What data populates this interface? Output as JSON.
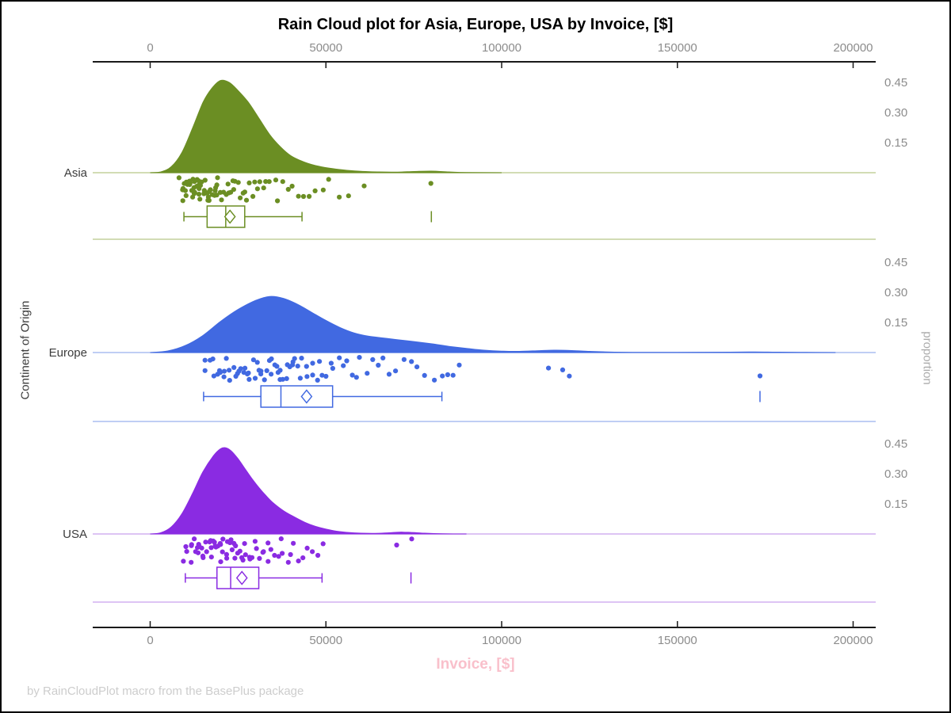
{
  "title": "Rain Cloud plot for Asia, Europe, USA by Invoice, [$]",
  "footer": "by RainCloudPlot macro from the BasePlus package",
  "axes": {
    "x_bottom_label": "Invoice, [$]",
    "x_bottom_label_color": "#f9c0cb",
    "y_left_label": "Continent of Origin",
    "y_right_label": "proportion",
    "tick_label_color": "#8c8c8c",
    "axis_line_color": "#1a1a1a"
  },
  "chart_data": {
    "type": "raincloud",
    "title": "Rain Cloud plot for Asia, Europe, USA by Invoice, [$]",
    "xlabel": "Invoice, [$]",
    "ylabel_left": "Continent of Origin",
    "ylabel_right": "proportion",
    "x_range": [
      0,
      200000
    ],
    "x_ticks": [
      0,
      50000,
      100000,
      150000,
      200000
    ],
    "x_tick_labels": [
      "0",
      "50000",
      "100000",
      "150000",
      "200000"
    ],
    "proportion_ticks": [
      0.45,
      0.3,
      0.15
    ],
    "proportion_tick_labels": [
      "0.45",
      "0.30",
      "0.15"
    ],
    "groups": [
      {
        "name": "Asia",
        "color": "#6B8E23",
        "light_color": "#c3d19c",
        "density": [
          [
            0,
            0
          ],
          [
            3000,
            0.004
          ],
          [
            6000,
            0.03
          ],
          [
            9000,
            0.1
          ],
          [
            12000,
            0.22
          ],
          [
            15000,
            0.35
          ],
          [
            17500,
            0.42
          ],
          [
            20000,
            0.46
          ],
          [
            22500,
            0.45
          ],
          [
            25000,
            0.41
          ],
          [
            28000,
            0.35
          ],
          [
            31000,
            0.27
          ],
          [
            34000,
            0.19
          ],
          [
            37000,
            0.13
          ],
          [
            40000,
            0.085
          ],
          [
            44000,
            0.052
          ],
          [
            48000,
            0.032
          ],
          [
            52000,
            0.02
          ],
          [
            56000,
            0.012
          ],
          [
            60000,
            0.007
          ],
          [
            65000,
            0.004
          ],
          [
            70000,
            0.003
          ],
          [
            75000,
            0.006
          ],
          [
            80000,
            0.008
          ],
          [
            85000,
            0.004
          ],
          [
            90000,
            0.001
          ],
          [
            100000,
            0
          ]
        ],
        "box": {
          "whisker_low": 9600,
          "q1": 16200,
          "median": 21500,
          "q3": 26900,
          "whisker_high": 43200,
          "mean": 22700,
          "outliers": [
            80000
          ]
        },
        "points": [
          8600,
          9100,
          9300,
          9600,
          9800,
          10000,
          10200,
          10400,
          10600,
          10800,
          11000,
          11200,
          11400,
          11600,
          11800,
          12000,
          12100,
          12300,
          12500,
          12700,
          12900,
          13100,
          13300,
          13500,
          13700,
          13900,
          14100,
          14300,
          14500,
          14700,
          14900,
          15100,
          15400,
          15600,
          15900,
          16100,
          16400,
          16700,
          17000,
          17300,
          17600,
          17900,
          18200,
          18500,
          18900,
          19200,
          19600,
          20000,
          20400,
          20800,
          21200,
          21700,
          22100,
          22600,
          23100,
          23700,
          24200,
          24800,
          25400,
          26000,
          26700,
          27400,
          28100,
          28900,
          29700,
          30500,
          31400,
          32300,
          33300,
          34300,
          35400,
          36600,
          37800,
          39100,
          40500,
          42000,
          43600,
          45300,
          47100,
          49000,
          51000,
          53500,
          56500,
          60500,
          80000
        ]
      },
      {
        "name": "Europe",
        "color": "#4169E1",
        "light_color": "#aabdf0",
        "density": [
          [
            0,
            0
          ],
          [
            5000,
            0.008
          ],
          [
            10000,
            0.035
          ],
          [
            15000,
            0.085
          ],
          [
            20000,
            0.155
          ],
          [
            25000,
            0.215
          ],
          [
            30000,
            0.26
          ],
          [
            34000,
            0.28
          ],
          [
            38000,
            0.27
          ],
          [
            42000,
            0.24
          ],
          [
            46000,
            0.2
          ],
          [
            50000,
            0.16
          ],
          [
            54000,
            0.125
          ],
          [
            58000,
            0.098
          ],
          [
            62000,
            0.082
          ],
          [
            66000,
            0.073
          ],
          [
            70000,
            0.065
          ],
          [
            75000,
            0.055
          ],
          [
            80000,
            0.044
          ],
          [
            85000,
            0.031
          ],
          [
            90000,
            0.021
          ],
          [
            95000,
            0.012
          ],
          [
            100000,
            0.007
          ],
          [
            105000,
            0.006
          ],
          [
            110000,
            0.009
          ],
          [
            115000,
            0.012
          ],
          [
            120000,
            0.01
          ],
          [
            125000,
            0.006
          ],
          [
            130000,
            0.003
          ],
          [
            140000,
            0.001
          ],
          [
            150000,
            0.001
          ],
          [
            165000,
            0.002
          ],
          [
            172000,
            0.003
          ],
          [
            178000,
            0.002
          ],
          [
            185000,
            0.001
          ],
          [
            195000,
            0
          ]
        ],
        "box": {
          "whisker_low": 15200,
          "q1": 31500,
          "median": 37200,
          "q3": 51900,
          "whisker_high": 83000,
          "mean": 44500,
          "outliers": [
            173500
          ]
        },
        "points": [
          15200,
          16000,
          16800,
          17500,
          18200,
          18900,
          19500,
          20100,
          20700,
          21300,
          21900,
          22500,
          23000,
          23600,
          24100,
          24700,
          25200,
          25800,
          26300,
          26900,
          27400,
          28000,
          28500,
          29100,
          29600,
          30200,
          30700,
          31300,
          31800,
          32400,
          32900,
          33500,
          34000,
          34600,
          35100,
          35700,
          36200,
          36800,
          37300,
          37900,
          38400,
          39000,
          39600,
          40200,
          40800,
          41400,
          42100,
          42800,
          43500,
          44200,
          45000,
          45800,
          46600,
          47500,
          48400,
          49300,
          50300,
          51300,
          52400,
          53500,
          54700,
          55900,
          57200,
          58500,
          59900,
          61400,
          62900,
          64500,
          66200,
          68000,
          69900,
          71900,
          74000,
          76200,
          78500,
          80900,
          83400,
          86000,
          88300,
          84700,
          113500,
          117800,
          119600,
          173500
        ]
      },
      {
        "name": "USA",
        "color": "#8A2BE2",
        "light_color": "#d2b0f0",
        "density": [
          [
            0,
            0
          ],
          [
            3000,
            0.006
          ],
          [
            6000,
            0.035
          ],
          [
            9000,
            0.1
          ],
          [
            12000,
            0.2
          ],
          [
            15000,
            0.31
          ],
          [
            18000,
            0.39
          ],
          [
            20000,
            0.425
          ],
          [
            21500,
            0.43
          ],
          [
            23000,
            0.415
          ],
          [
            25000,
            0.375
          ],
          [
            27000,
            0.325
          ],
          [
            29000,
            0.275
          ],
          [
            31000,
            0.23
          ],
          [
            33000,
            0.19
          ],
          [
            35000,
            0.155
          ],
          [
            38000,
            0.115
          ],
          [
            41000,
            0.085
          ],
          [
            44000,
            0.058
          ],
          [
            47000,
            0.038
          ],
          [
            50000,
            0.024
          ],
          [
            53000,
            0.014
          ],
          [
            56000,
            0.008
          ],
          [
            60000,
            0.004
          ],
          [
            64000,
            0.003
          ],
          [
            68000,
            0.006
          ],
          [
            71000,
            0.009
          ],
          [
            74000,
            0.008
          ],
          [
            78000,
            0.004
          ],
          [
            83000,
            0.001
          ],
          [
            90000,
            0
          ]
        ],
        "box": {
          "whisker_low": 10000,
          "q1": 19000,
          "median": 22900,
          "q3": 30900,
          "whisker_high": 48900,
          "mean": 26100,
          "outliers": [
            74200
          ]
        },
        "points": [
          9800,
          10300,
          10800,
          11300,
          11700,
          12100,
          12500,
          12900,
          13300,
          13700,
          14000,
          14400,
          14700,
          15100,
          15400,
          15800,
          16100,
          16500,
          16800,
          17200,
          17500,
          17900,
          18200,
          18600,
          18900,
          19300,
          19600,
          20000,
          20300,
          20700,
          21000,
          21400,
          21800,
          22200,
          22600,
          23000,
          23400,
          23800,
          24200,
          24600,
          25000,
          25500,
          26000,
          26500,
          27000,
          27500,
          28000,
          28600,
          29200,
          29800,
          30400,
          31000,
          31700,
          32400,
          33100,
          33800,
          34600,
          35400,
          36200,
          37100,
          38000,
          39000,
          40000,
          41100,
          42300,
          43500,
          44800,
          46200,
          47700,
          49300,
          70500,
          74500
        ]
      }
    ]
  }
}
